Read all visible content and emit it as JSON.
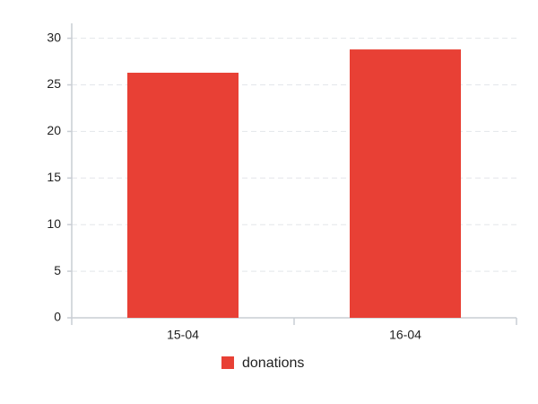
{
  "chart_data": {
    "type": "bar",
    "categories": [
      "15-04",
      "16-04"
    ],
    "series": [
      {
        "name": "donations",
        "color": "#e84035",
        "values": [
          26.3,
          28.8
        ]
      }
    ],
    "ylim": [
      0,
      31.6
    ],
    "yticks": [
      0,
      5,
      10,
      15,
      20,
      25,
      30
    ],
    "grid": true
  }
}
